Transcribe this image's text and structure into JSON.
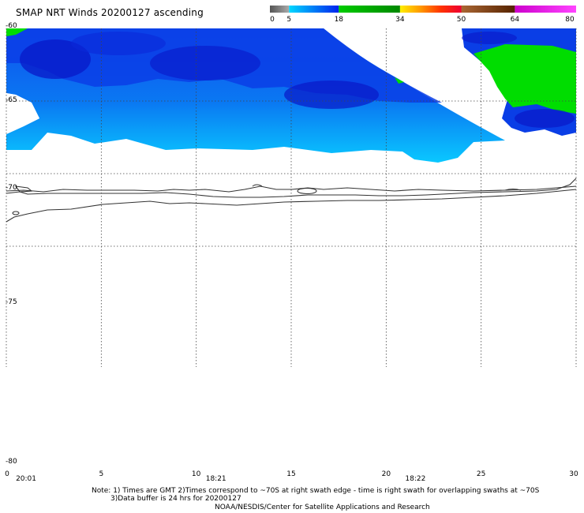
{
  "title": "SMAP NRT Winds 20200127 ascending",
  "colorbar": {
    "ticks": [
      {
        "label": "0",
        "value": 0
      },
      {
        "label": "5",
        "value": 5
      },
      {
        "label": "18",
        "value": 18
      },
      {
        "label": "34",
        "value": 34
      },
      {
        "label": "50",
        "value": 50
      },
      {
        "label": "64",
        "value": 64
      },
      {
        "label": "80",
        "value": 80
      }
    ],
    "segments": [
      {
        "from": 0,
        "to": 5,
        "color": "#555555",
        "gradient_to": "#aaaaaa"
      },
      {
        "from": 5,
        "to": 18,
        "color": "#00d8ff",
        "gradient_to": "#0022ee"
      },
      {
        "from": 18,
        "to": 34,
        "color": "#00cc00",
        "gradient_to": "#008800"
      },
      {
        "from": 34,
        "to": 50,
        "color": "#ffee00",
        "gradient_to": "#ee0000",
        "stops": [
          "#ffee00",
          "#ff9900",
          "#ff3300",
          "#ee0033"
        ]
      },
      {
        "from": 50,
        "to": 64,
        "color": "#aa6633",
        "gradient_to": "#552200"
      },
      {
        "from": 64,
        "to": 80,
        "color": "#cc00cc",
        "gradient_to": "#ff44ff"
      }
    ]
  },
  "axes": {
    "lat_labels": [
      "-60",
      "-65",
      "-70",
      "-75",
      "-80"
    ],
    "lat_values": [
      -60,
      -65,
      -70,
      -75,
      -80
    ],
    "lon_labels": [
      "0",
      "5",
      "10",
      "15",
      "20",
      "25",
      "30"
    ],
    "lon_values": [
      0,
      5,
      10,
      15,
      20,
      25,
      30
    ],
    "time_labels": [
      {
        "label": "20:01",
        "lon": 1
      },
      {
        "label": "18:21",
        "lon": 11
      },
      {
        "label": "18:22",
        "lon": 21.5
      }
    ]
  },
  "colors": {
    "low_wind_cyan": "#0ab4ff",
    "mid_wind_blue": "#0a3ee6",
    "dark_wind_blue": "#0818c8",
    "gale_green": "#00dd00",
    "coastline": "#333333",
    "grid": "#444444"
  },
  "notes": {
    "line1": "Note: 1) Times are GMT 2)Times correspond to ~70S at right swath edge - time is right swath for overlapping swaths at ~70S",
    "line2": "3)Data buffer is 24 hrs for 20200127",
    "line3": "NOAA/NESDIS/Center for Satellite Applications and Research"
  }
}
